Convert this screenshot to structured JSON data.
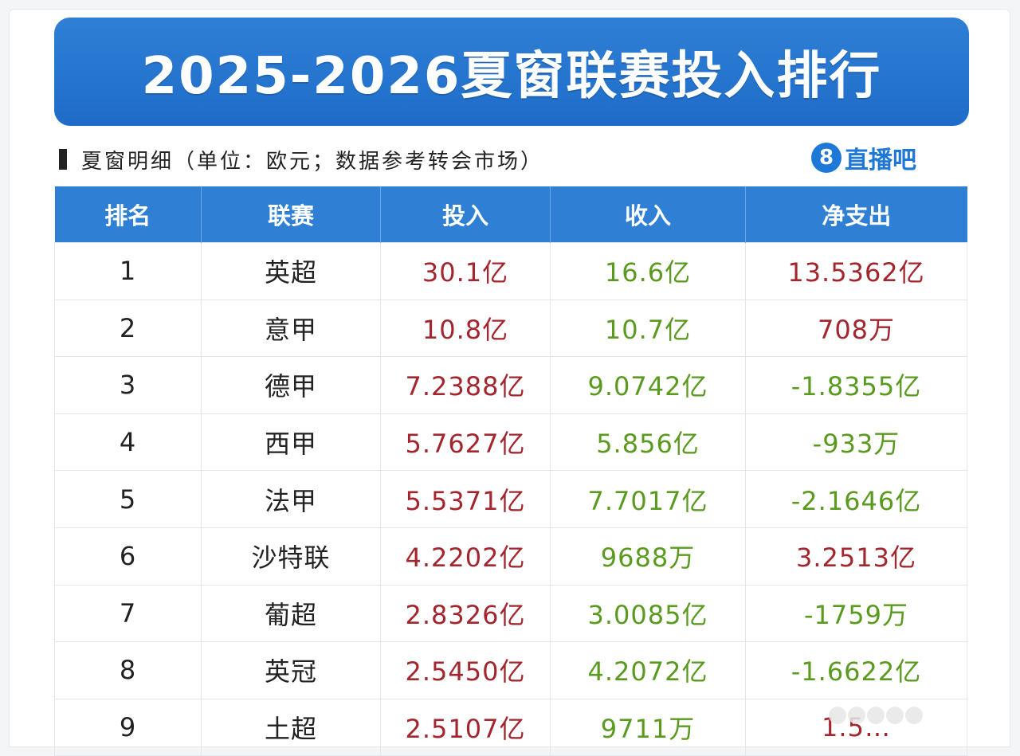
{
  "title": "2025-2026夏窗联赛投入排行",
  "subtitle": "夏窗明细（单位：欧元；数据参考转会市场）",
  "logo": {
    "badge": "8",
    "text": "直播吧"
  },
  "table": {
    "headers": [
      "排名",
      "联赛",
      "投入",
      "收入",
      "净支出"
    ],
    "rows": [
      {
        "rank": "1",
        "league": "英超",
        "spend": "30.1亿",
        "income": "16.6亿",
        "net": "13.5362亿",
        "net_color": "red"
      },
      {
        "rank": "2",
        "league": "意甲",
        "spend": "10.8亿",
        "income": "10.7亿",
        "net": "708万",
        "net_color": "red"
      },
      {
        "rank": "3",
        "league": "德甲",
        "spend": "7.2388亿",
        "income": "9.0742亿",
        "net": "-1.8355亿",
        "net_color": "green"
      },
      {
        "rank": "4",
        "league": "西甲",
        "spend": "5.7627亿",
        "income": "5.856亿",
        "net": "-933万",
        "net_color": "green"
      },
      {
        "rank": "5",
        "league": "法甲",
        "spend": "5.5371亿",
        "income": "7.7017亿",
        "net": "-2.1646亿",
        "net_color": "green"
      },
      {
        "rank": "6",
        "league": "沙特联",
        "spend": "4.2202亿",
        "income": "9688万",
        "net": "3.2513亿",
        "net_color": "red"
      },
      {
        "rank": "7",
        "league": "葡超",
        "spend": "2.8326亿",
        "income": "3.0085亿",
        "net": "-1759万",
        "net_color": "green"
      },
      {
        "rank": "8",
        "league": "英冠",
        "spend": "2.5450亿",
        "income": "4.2072亿",
        "net": "-1.6622亿",
        "net_color": "green"
      },
      {
        "rank": "9",
        "league": "土超",
        "spend": "2.5107亿",
        "income": "9711万",
        "net": "1.5…",
        "net_color": "red"
      }
    ]
  },
  "colors": {
    "banner": "#1e6cc8",
    "header": "#2f80d5",
    "spend": "#a3262e",
    "income": "#5a9a1f"
  }
}
